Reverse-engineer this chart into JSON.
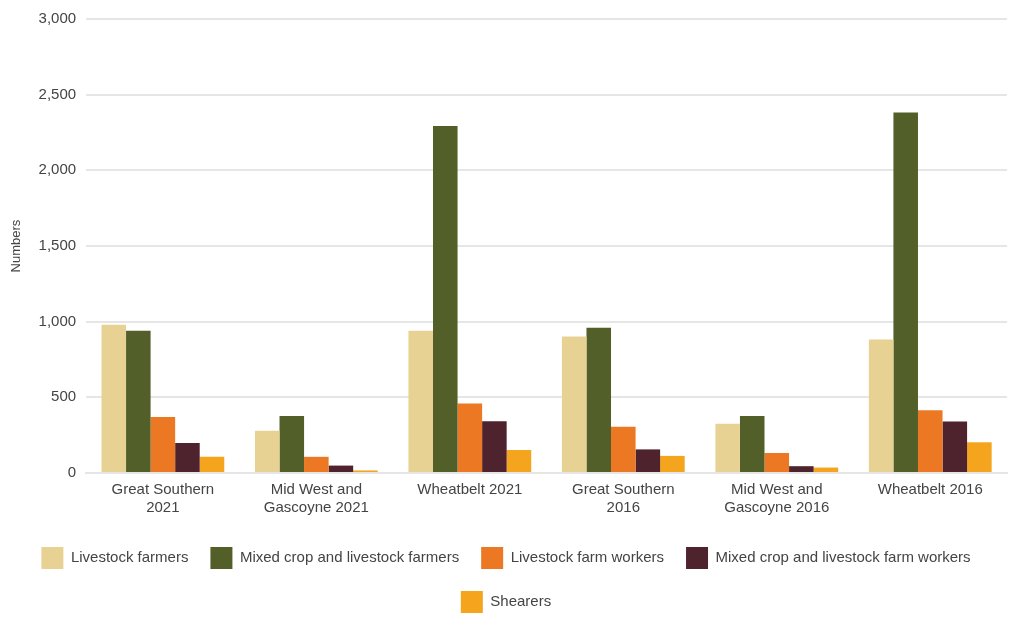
{
  "chart_data": {
    "type": "bar",
    "ylabel": "Numbers",
    "categories": [
      "Great Southern 2021",
      "Mid West and Gascoyne 2021",
      "Wheatbelt 2021",
      "Great Southern 2016",
      "Mid West and Gascoyne 2016",
      "Wheatbelt 2016"
    ],
    "series": [
      {
        "name": "Livestock farmers",
        "color": "#e8d293",
        "values": [
          979,
          280,
          940,
          902,
          325,
          882
        ]
      },
      {
        "name": "Mixed crop and livestock farmers",
        "color": "#525f29",
        "values": [
          940,
          376,
          2293,
          959,
          376,
          2382
        ]
      },
      {
        "name": "Livestock farm workers",
        "color": "#ec7823",
        "values": [
          370,
          107,
          459,
          306,
          132,
          415
        ]
      },
      {
        "name": "Mixed crop and livestock farm workers",
        "color": "#4f232d",
        "values": [
          199,
          49,
          342,
          156,
          45,
          340
        ]
      },
      {
        "name": "Shearers",
        "color": "#f5a41d",
        "values": [
          107,
          17,
          152,
          113,
          36,
          203
        ]
      }
    ],
    "ylim": [
      0,
      3000
    ],
    "yticks": [
      0,
      500,
      {
        "value": 1000,
        "label": "1,000"
      },
      {
        "value": 1500,
        "label": "1,500"
      },
      {
        "value": 2000,
        "label": "2,000"
      },
      {
        "value": 2500,
        "label": "2,500"
      },
      {
        "value": 3000,
        "label": "3,000"
      }
    ],
    "grid": "y",
    "legend": "bottom"
  }
}
